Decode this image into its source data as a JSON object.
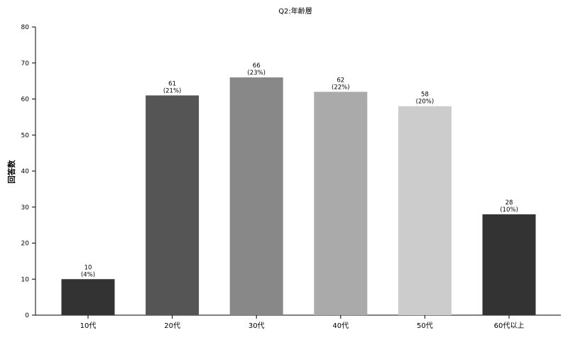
{
  "chart_data": {
    "type": "bar",
    "title": "Q2:年齢層",
    "ylabel": "回答数",
    "xlabel": "",
    "categories": [
      "10代",
      "20代",
      "30代",
      "40代",
      "50代",
      "60代以上"
    ],
    "values": [
      10,
      61,
      66,
      62,
      58,
      28
    ],
    "percent_labels": [
      "(4%)",
      "(21%)",
      "(23%)",
      "(22%)",
      "(20%)",
      "(10%)"
    ],
    "colors": [
      "#333333",
      "#555555",
      "#888888",
      "#aaaaaa",
      "#cccccc",
      "#333333"
    ],
    "ylim": [
      0,
      80
    ],
    "yticks": [
      0,
      10,
      20,
      30,
      40,
      50,
      60,
      70,
      80
    ],
    "grid": false,
    "legend": "none"
  }
}
